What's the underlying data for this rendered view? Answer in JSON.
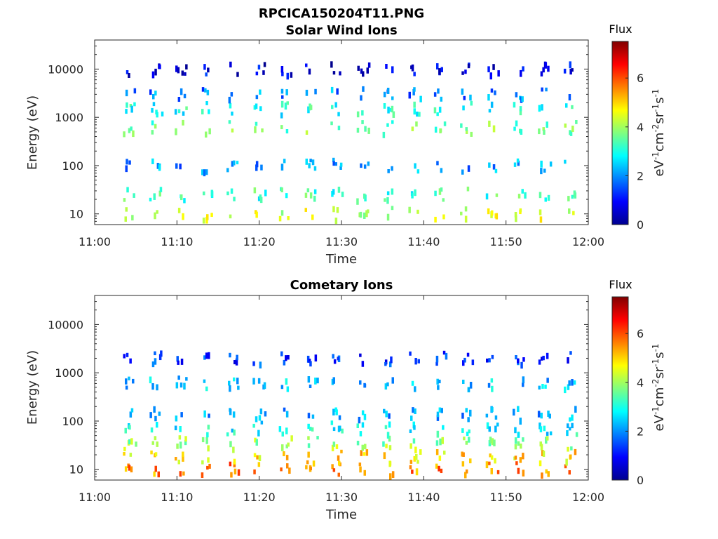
{
  "figure_title": "RPCICA150204T11.PNG",
  "chart_data": [
    {
      "type": "heatmap",
      "title": "Solar Wind Ions",
      "xlabel": "Time",
      "ylabel": "Energy (eV)",
      "x_ticks": [
        "11:00",
        "11:10",
        "11:20",
        "11:30",
        "11:40",
        "11:50",
        "12:00"
      ],
      "x_range_minutes": [
        0,
        60
      ],
      "y_scale": "log",
      "y_range": [
        6,
        40000
      ],
      "y_ticks": [
        10,
        100,
        1000,
        10000
      ],
      "y_tick_labels": [
        "10",
        "100",
        "1000",
        "10000"
      ],
      "colorbar": {
        "title": "Flux",
        "label": "eV-1cm-2sr-1s-1",
        "ticks": [
          0,
          2,
          4,
          6
        ],
        "range": [
          0,
          7.5
        ]
      },
      "sweep_start_minutes": [
        3.6,
        6.8,
        9.9,
        13.1,
        16.2,
        19.4,
        22.5,
        25.7,
        28.8,
        32.0,
        35.1,
        38.3,
        41.4,
        44.6,
        47.7,
        50.9,
        54.0,
        57.2
      ],
      "bands": [
        {
          "energy_eV": 10,
          "flux": 4.3
        },
        {
          "energy_eV": 25,
          "flux": 3.2
        },
        {
          "energy_eV": 100,
          "flux": 2.0
        },
        {
          "energy_eV": 600,
          "flux": 3.6
        },
        {
          "energy_eV": 1500,
          "flux": 3.0
        },
        {
          "energy_eV": 3000,
          "flux": 1.9
        },
        {
          "energy_eV": 10000,
          "flux": 0.8
        }
      ]
    },
    {
      "type": "heatmap",
      "title": "Cometary Ions",
      "xlabel": "Time",
      "ylabel": "Energy (eV)",
      "x_ticks": [
        "11:00",
        "11:10",
        "11:20",
        "11:30",
        "11:40",
        "11:50",
        "12:00"
      ],
      "x_range_minutes": [
        0,
        60
      ],
      "y_scale": "log",
      "y_range": [
        6,
        40000
      ],
      "y_ticks": [
        10,
        100,
        1000,
        10000
      ],
      "y_tick_labels": [
        "10",
        "100",
        "1000",
        "10000"
      ],
      "colorbar": {
        "title": "Flux",
        "label": "eV-1cm-2sr-1s-1",
        "ticks": [
          0,
          2,
          4,
          6
        ],
        "range": [
          0,
          7.5
        ]
      },
      "sweep_start_minutes": [
        3.6,
        6.8,
        9.9,
        13.1,
        16.2,
        19.4,
        22.5,
        25.7,
        28.8,
        32.0,
        35.1,
        38.3,
        41.4,
        44.6,
        47.7,
        50.9,
        54.0,
        57.2
      ],
      "bands": [
        {
          "energy_eV": 10,
          "flux": 5.6
        },
        {
          "energy_eV": 18,
          "flux": 4.9
        },
        {
          "energy_eV": 35,
          "flux": 3.9
        },
        {
          "energy_eV": 70,
          "flux": 2.8
        },
        {
          "energy_eV": 140,
          "flux": 2.2
        },
        {
          "energy_eV": 600,
          "flux": 2.4
        },
        {
          "energy_eV": 2000,
          "flux": 1.3
        }
      ]
    }
  ]
}
